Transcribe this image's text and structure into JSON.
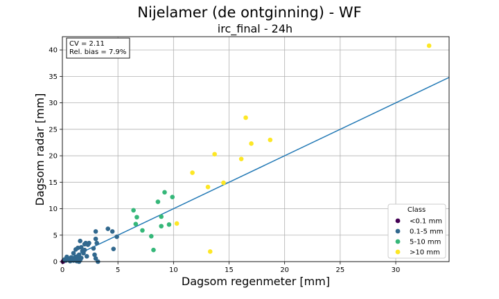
{
  "chart_data": {
    "type": "scatter",
    "title": "Nijelamer (de ontginning) - WF",
    "subtitle": "irc_final - 24h",
    "xlabel": "Dagsom regenmeter [mm]",
    "ylabel": "Dagsom radar [mm]",
    "xlim": [
      0,
      34.8
    ],
    "ylim": [
      0,
      42.5
    ],
    "xticks": [
      0,
      5,
      10,
      15,
      20,
      25,
      30
    ],
    "yticks": [
      0,
      5,
      10,
      15,
      20,
      25,
      30,
      35,
      40
    ],
    "grid": true,
    "stats": {
      "cv": "CV = 2.11",
      "bias": "Rel. bias = 7.9%"
    },
    "fit_line": {
      "x": [
        0,
        34.8
      ],
      "y": [
        0,
        34.8
      ]
    },
    "legend": {
      "title": "Class",
      "placement": "lower-right",
      "entries": [
        {
          "label": "<0.1 mm",
          "color": "#440154"
        },
        {
          "label": "0.1-5 mm",
          "color": "#31688e"
        },
        {
          "label": "5-10 mm",
          "color": "#35b779"
        },
        {
          "label": ">10 mm",
          "color": "#fde725"
        }
      ]
    },
    "series": [
      {
        "name": "<0.1 mm",
        "color": "#440154",
        "points": [
          [
            0.05,
            0.0
          ],
          [
            0.08,
            0.1
          ]
        ]
      },
      {
        "name": "0.1-5 mm",
        "color": "#31688e",
        "points": [
          [
            0.2,
            0.4
          ],
          [
            0.3,
            0.2
          ],
          [
            0.4,
            0.9
          ],
          [
            0.5,
            0.6
          ],
          [
            0.6,
            0.3
          ],
          [
            0.7,
            0.1
          ],
          [
            0.8,
            0.8
          ],
          [
            0.9,
            0.4
          ],
          [
            1.0,
            1.6
          ],
          [
            1.0,
            0.2
          ],
          [
            1.1,
            0.5
          ],
          [
            1.2,
            2.3
          ],
          [
            1.2,
            0.9
          ],
          [
            1.3,
            0.1
          ],
          [
            1.4,
            2.6
          ],
          [
            1.4,
            0.6
          ],
          [
            1.5,
            1.3
          ],
          [
            1.5,
            0.0
          ],
          [
            1.6,
            3.9
          ],
          [
            1.6,
            0.3
          ],
          [
            1.7,
            2.7
          ],
          [
            1.7,
            0.7
          ],
          [
            1.8,
            2.0
          ],
          [
            1.9,
            1.6
          ],
          [
            2.0,
            3.3
          ],
          [
            2.0,
            2.2
          ],
          [
            2.1,
            3.5
          ],
          [
            2.2,
            1.0
          ],
          [
            2.3,
            3.2
          ],
          [
            2.4,
            3.5
          ],
          [
            2.8,
            2.5
          ],
          [
            2.9,
            1.3
          ],
          [
            3.0,
            4.3
          ],
          [
            3.0,
            5.7
          ],
          [
            3.0,
            0.6
          ],
          [
            3.1,
            3.5
          ],
          [
            3.2,
            0.0
          ],
          [
            4.1,
            6.2
          ],
          [
            4.5,
            5.7
          ],
          [
            4.6,
            2.4
          ],
          [
            4.9,
            4.7
          ]
        ]
      },
      {
        "name": "5-10 mm",
        "color": "#35b779",
        "points": [
          [
            6.4,
            9.7
          ],
          [
            6.6,
            7.1
          ],
          [
            6.7,
            8.4
          ],
          [
            7.2,
            5.9
          ],
          [
            8.0,
            4.8
          ],
          [
            8.2,
            2.2
          ],
          [
            8.6,
            11.3
          ],
          [
            8.9,
            6.7
          ],
          [
            8.9,
            8.5
          ],
          [
            9.2,
            13.1
          ],
          [
            9.6,
            7.0
          ],
          [
            9.9,
            12.2
          ]
        ]
      },
      {
        "name": ">10 mm",
        "color": "#fde725",
        "points": [
          [
            10.3,
            7.2
          ],
          [
            11.7,
            16.8
          ],
          [
            13.1,
            14.1
          ],
          [
            13.3,
            1.9
          ],
          [
            13.7,
            20.3
          ],
          [
            14.5,
            14.9
          ],
          [
            16.1,
            19.4
          ],
          [
            16.5,
            27.2
          ],
          [
            17.0,
            22.3
          ],
          [
            18.7,
            23.0
          ],
          [
            33.0,
            40.8
          ]
        ]
      }
    ]
  }
}
